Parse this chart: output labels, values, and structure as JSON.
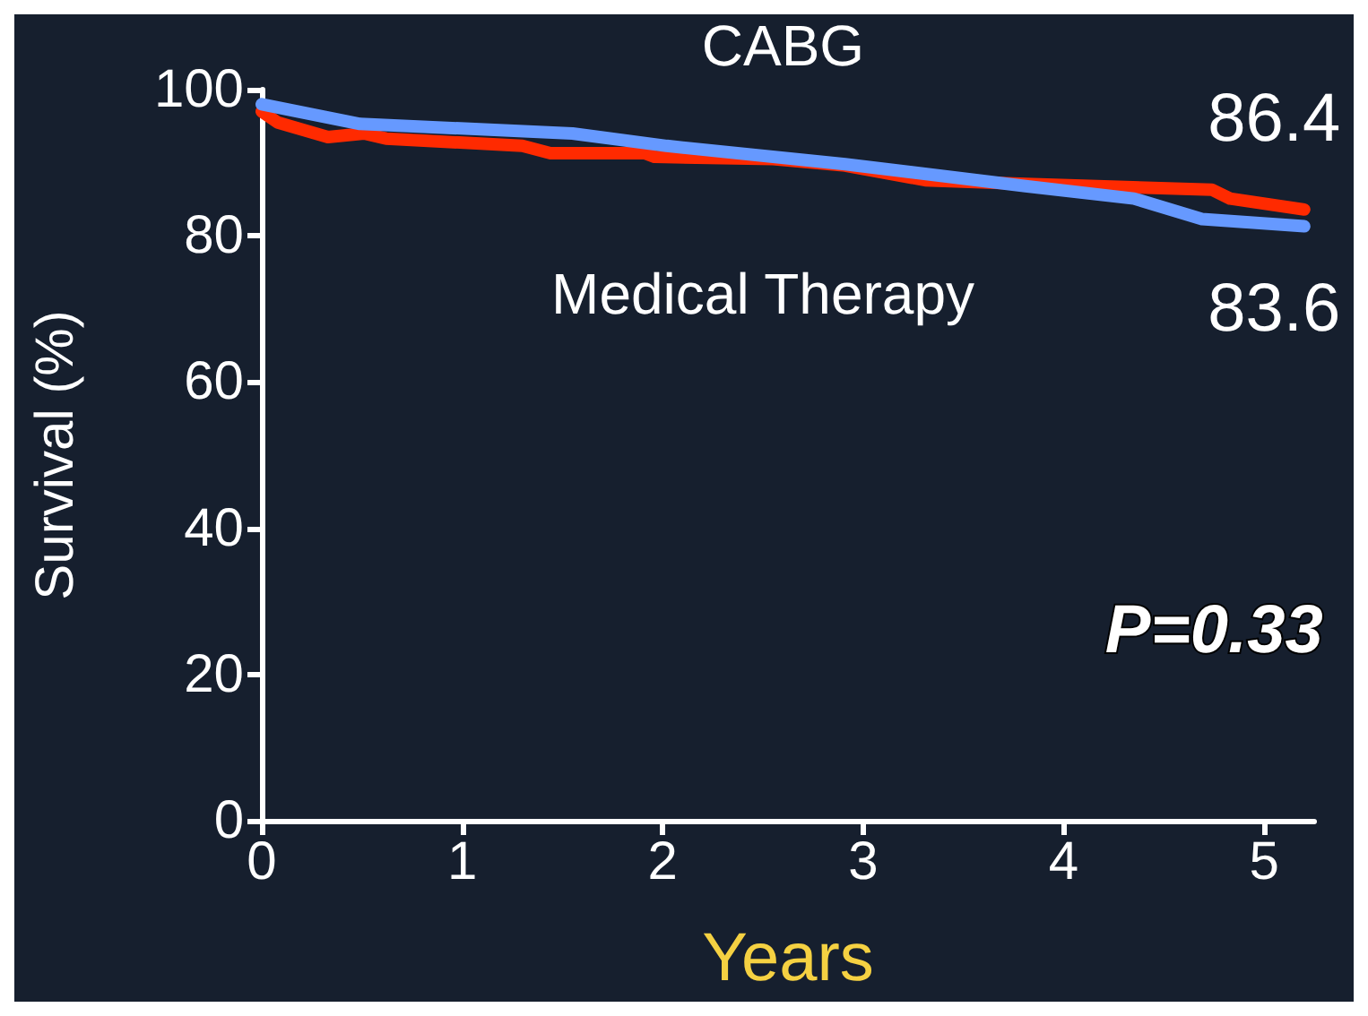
{
  "chart_data": {
    "type": "line",
    "xlabel": "Years",
    "ylabel": "Survival (%)",
    "xlim": [
      0,
      5.25
    ],
    "xticks": [
      0,
      1,
      2,
      3,
      4,
      5
    ],
    "ylim": [
      0,
      100
    ],
    "yticks": [
      0,
      20,
      40,
      60,
      80,
      100
    ],
    "grid": false,
    "legend": false,
    "marker": "none",
    "line_style": "solid",
    "series": [
      {
        "name": "CABG",
        "color": "#ff2a00",
        "x": [
          0,
          0.08,
          0.33,
          0.51,
          0.62,
          1.3,
          1.44,
          1.91,
          1.96,
          2.55,
          2.91,
          3.31,
          3.81,
          4.74,
          4.83,
          5.2
        ],
        "values": [
          97.0,
          95.5,
          93.5,
          94.0,
          93.3,
          92.3,
          91.3,
          91.3,
          90.8,
          90.5,
          89.6,
          87.6,
          87.1,
          86.3,
          85.1,
          83.6
        ]
      },
      {
        "name": "Medical Therapy",
        "color": "#6699ff",
        "x": [
          0,
          0.49,
          1.55,
          2.02,
          2.91,
          3.81,
          4.35,
          4.69,
          5.2
        ],
        "values": [
          98.0,
          95.3,
          94.0,
          92.3,
          89.8,
          86.8,
          85.1,
          82.3,
          81.3
        ]
      }
    ],
    "annotations": [
      "86.4",
      "83.6",
      "P=0.33"
    ]
  }
}
